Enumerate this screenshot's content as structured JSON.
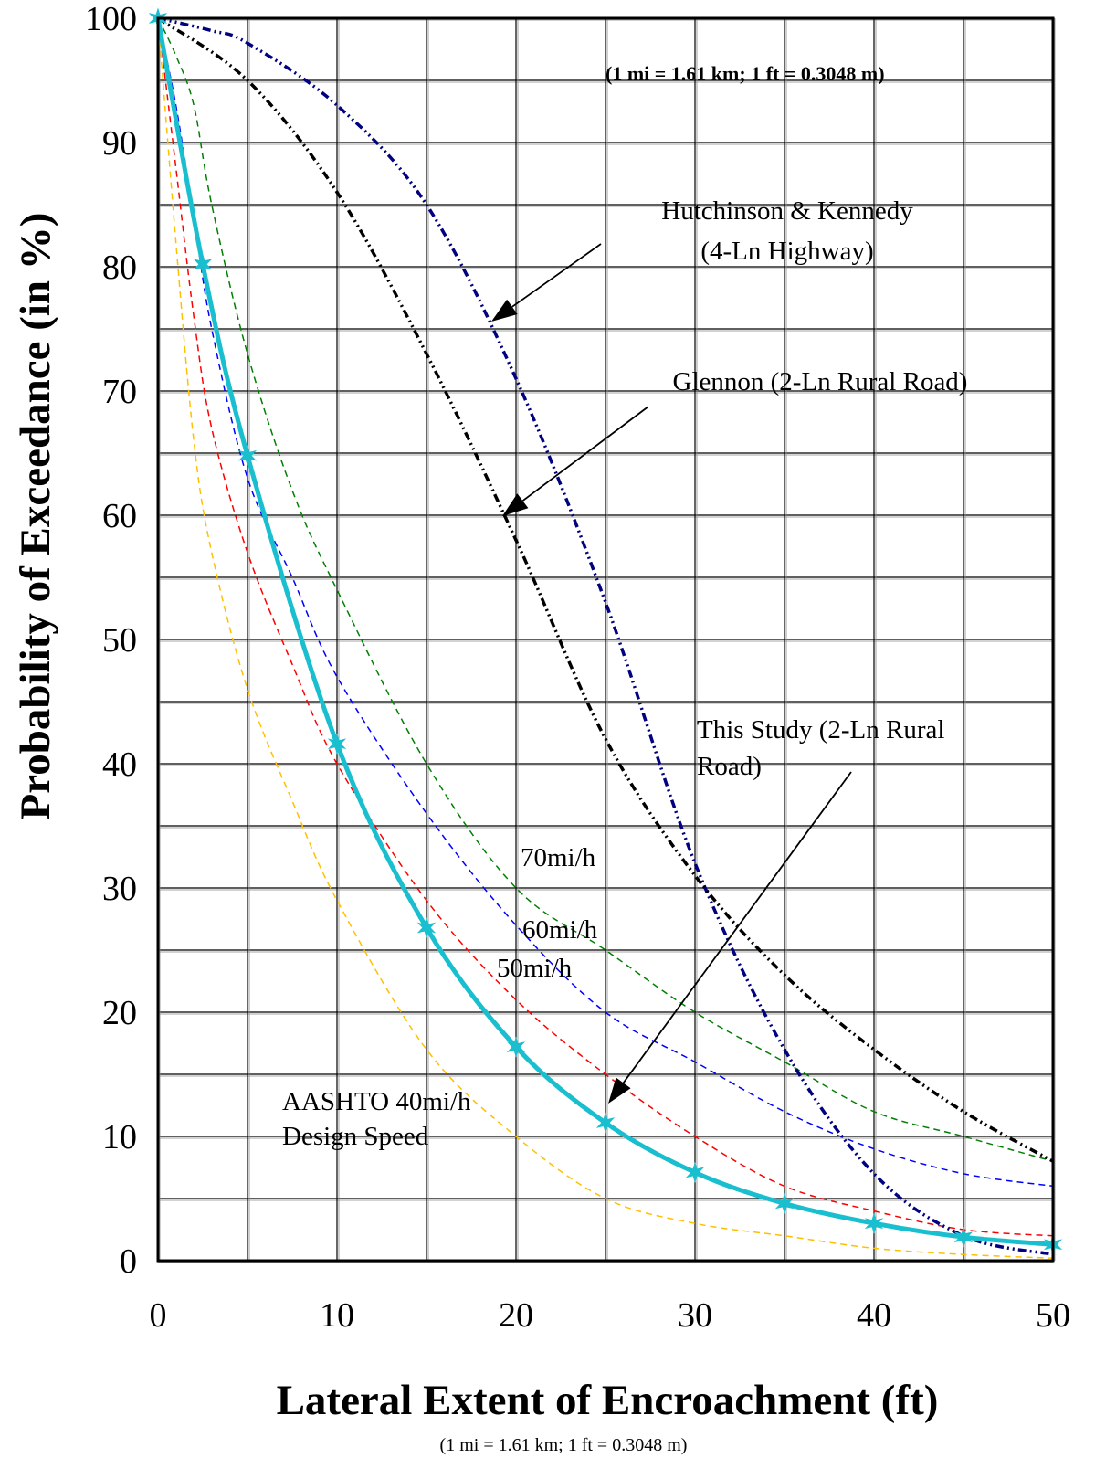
{
  "chart_data": {
    "type": "line",
    "xlabel": "Lateral Extent of Encroachment (ft)",
    "ylabel": "Probability of Exceedance (in %)",
    "xlim": [
      0,
      50
    ],
    "ylim": [
      0,
      100
    ],
    "x_ticks": [
      "0",
      "10",
      "20",
      "30",
      "40",
      "50"
    ],
    "y_ticks": [
      "0",
      "10",
      "20",
      "30",
      "40",
      "50",
      "60",
      "70",
      "80",
      "90",
      "100"
    ],
    "grid": true,
    "conversion_note_top": "(1 mi = 1.61 km; 1 ft = 0.3048 m)",
    "conversion_note_bottom": "(1 mi = 1.61 km; 1 ft = 0.3048 m)",
    "series": [
      {
        "name": "Hutchinson & Kennedy (4-Ln Highway)",
        "color": "#000080",
        "dash": "dash-dot-dot",
        "x": [
          0,
          3,
          5,
          10,
          15,
          20,
          25,
          30,
          35,
          40,
          45,
          50
        ],
        "y": [
          100,
          99,
          98,
          93,
          85,
          71,
          53,
          32,
          17,
          7,
          2,
          0.5
        ]
      },
      {
        "name": "Glennon (2-Ln Rural Road)",
        "color": "#000000",
        "dash": "dash-dot-dot",
        "x": [
          0,
          5,
          10,
          15,
          20,
          25,
          30,
          35,
          40,
          45,
          50
        ],
        "y": [
          100,
          95,
          86,
          73,
          58,
          42,
          31,
          23,
          17,
          12,
          8
        ]
      },
      {
        "name": "This Study (2-Ln Rural Road)",
        "color": "#19BFCF",
        "dash": "solid",
        "markers": "star",
        "x": [
          0,
          2.5,
          5,
          10,
          15,
          20,
          25,
          30,
          35,
          40,
          45,
          50
        ],
        "y": [
          100,
          80.2,
          64.8,
          41.6,
          26.8,
          17.2,
          11.1,
          7.1,
          4.6,
          3.0,
          1.9,
          1.3
        ]
      },
      {
        "name": "70mi/h",
        "color": "#008000",
        "dash": "dashed",
        "x": [
          0,
          1,
          2,
          3,
          5,
          7.5,
          10,
          15,
          20,
          25,
          30,
          35,
          40,
          45,
          50
        ],
        "y": [
          100,
          97,
          93,
          85,
          73,
          62,
          54,
          40,
          30,
          25,
          20,
          16,
          12,
          10,
          8
        ]
      },
      {
        "name": "60mi/h",
        "color": "#0000FF",
        "dash": "dashed",
        "x": [
          0,
          1,
          2,
          3,
          5,
          7.5,
          10,
          15,
          20,
          25,
          30,
          35,
          40,
          45,
          50
        ],
        "y": [
          100,
          93,
          84,
          75,
          63,
          55,
          47,
          36,
          27,
          20,
          16,
          12,
          9,
          7,
          6
        ]
      },
      {
        "name": "50mi/h",
        "color": "#FF0000",
        "dash": "dashed",
        "x": [
          0,
          1,
          2,
          3,
          5,
          7.5,
          10,
          15,
          20,
          25,
          30,
          35,
          40,
          45,
          50
        ],
        "y": [
          100,
          88,
          76,
          67,
          57,
          48,
          40,
          29,
          21,
          15,
          10,
          6,
          4,
          2.5,
          2
        ]
      },
      {
        "name": "AASHTO 40mi/h Design Speed",
        "color": "#FFC000",
        "dash": "dashed",
        "x": [
          0,
          1,
          2,
          3,
          5,
          7.5,
          10,
          15,
          20,
          25,
          30,
          35,
          40,
          45,
          50
        ],
        "y": [
          100,
          82,
          66,
          57,
          46,
          37,
          29,
          17,
          10,
          5,
          3,
          2,
          1,
          0.5,
          0.2
        ]
      }
    ],
    "annotations": [
      {
        "id": "hk",
        "lines": [
          "Hutchinson & Kennedy",
          "(4-Ln Highway)"
        ]
      },
      {
        "id": "glennon",
        "lines": [
          "Glennon (2-Ln Rural Road)"
        ]
      },
      {
        "id": "study",
        "lines": [
          "This Study (2-Ln Rural",
          "Road)"
        ]
      },
      {
        "id": "s70",
        "lines": [
          "70mi/h"
        ]
      },
      {
        "id": "s60",
        "lines": [
          "60mi/h"
        ]
      },
      {
        "id": "s50",
        "lines": [
          "50mi/h"
        ]
      },
      {
        "id": "aashto",
        "lines": [
          "AASHTO 40mi/h",
          "Design Speed"
        ]
      }
    ]
  }
}
